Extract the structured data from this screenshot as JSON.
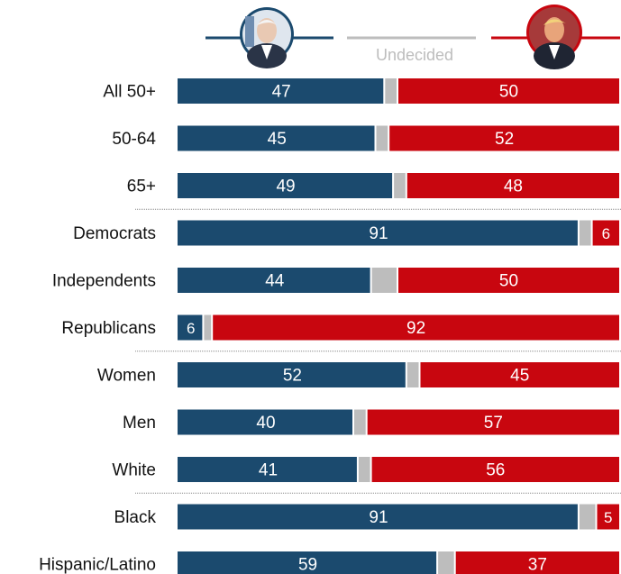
{
  "legend": {
    "left_candidate_icon": "portrait-left-candidate-icon",
    "right_candidate_icon": "portrait-right-candidate-icon",
    "undecided_label": "Undecided"
  },
  "colors": {
    "left": "#1b4a6e",
    "right": "#c8060f",
    "undecided": "#bdbdbd",
    "text": "#111111",
    "divider": "#8a8a8a"
  },
  "chart_data": {
    "type": "bar",
    "orientation": "horizontal",
    "stacked": true,
    "scale": [
      0,
      100
    ],
    "categories": [
      "All 50+",
      "50-64",
      "65+",
      "Democrats",
      "Independents",
      "Republicans",
      "Women",
      "Men",
      "White",
      "Black",
      "Hispanic/Latino"
    ],
    "series": [
      {
        "values": [
          47,
          45,
          49,
          91,
          44,
          6,
          52,
          40,
          41,
          91,
          59
        ]
      },
      {
        "name": "Undecided",
        "values": [
          3,
          3,
          3,
          3,
          6,
          2,
          3,
          3,
          3,
          4,
          4
        ]
      },
      {
        "values": [
          50,
          52,
          48,
          6,
          50,
          92,
          45,
          57,
          56,
          5,
          37
        ]
      }
    ],
    "dividers_after": [
      "65+",
      "Republicans",
      "White"
    ]
  }
}
